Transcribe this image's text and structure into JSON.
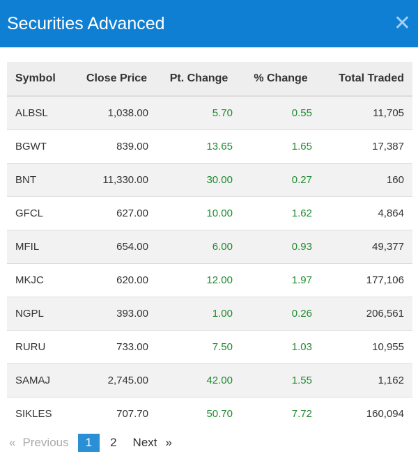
{
  "header": {
    "title": "Securities Advanced"
  },
  "table": {
    "columns": [
      "Symbol",
      "Close Price",
      "Pt. Change",
      "% Change",
      "Total Traded"
    ],
    "rows": [
      {
        "symbol": "ALBSL",
        "close": "1,038.00",
        "pt": "5.70",
        "pct": "0.55",
        "traded": "11,705"
      },
      {
        "symbol": "BGWT",
        "close": "839.00",
        "pt": "13.65",
        "pct": "1.65",
        "traded": "17,387"
      },
      {
        "symbol": "BNT",
        "close": "11,330.00",
        "pt": "30.00",
        "pct": "0.27",
        "traded": "160"
      },
      {
        "symbol": "GFCL",
        "close": "627.00",
        "pt": "10.00",
        "pct": "1.62",
        "traded": "4,864"
      },
      {
        "symbol": "MFIL",
        "close": "654.00",
        "pt": "6.00",
        "pct": "0.93",
        "traded": "49,377"
      },
      {
        "symbol": "MKJC",
        "close": "620.00",
        "pt": "12.00",
        "pct": "1.97",
        "traded": "177,106"
      },
      {
        "symbol": "NGPL",
        "close": "393.00",
        "pt": "1.00",
        "pct": "0.26",
        "traded": "206,561"
      },
      {
        "symbol": "RURU",
        "close": "733.00",
        "pt": "7.50",
        "pct": "1.03",
        "traded": "10,955"
      },
      {
        "symbol": "SAMAJ",
        "close": "2,745.00",
        "pt": "42.00",
        "pct": "1.55",
        "traded": "1,162"
      },
      {
        "symbol": "SIKLES",
        "close": "707.70",
        "pt": "50.70",
        "pct": "7.72",
        "traded": "160,094"
      }
    ]
  },
  "pagination": {
    "prev_arrow": "«",
    "prev_label": "Previous",
    "pages": [
      "1",
      "2"
    ],
    "current": "1",
    "next_label": "Next",
    "next_arrow": "»"
  },
  "colors": {
    "header_bg": "#0f7fd3",
    "positive": "#1f8a2e",
    "active_page": "#2b8fd6"
  }
}
